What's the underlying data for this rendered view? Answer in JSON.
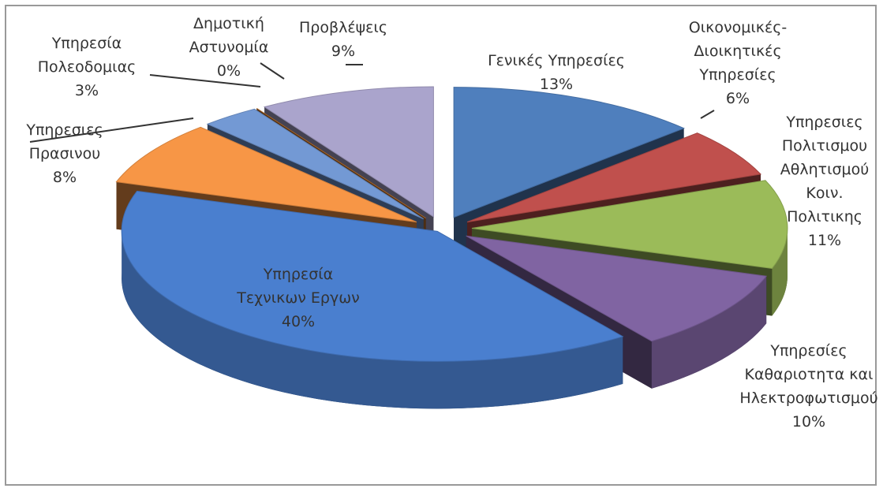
{
  "chart_data": {
    "type": "pie3d",
    "categories": [
      "Γενικές Υπηρεσίες",
      "Οικονομικές-\nΔιοικητικές\nΥπηρεσίες",
      "Υπηρεσιες\nΠολιτισμου\nΑθλητισμού\nΚοιν.\nΠολιτικης",
      "Υπηρεσίες\nΚαθαριοτητα και\nΗλεκτροφωτισμού",
      "Υπηρεσία\nΤεχνικων Εργων",
      "Υπηρεσιες\nΠρασινου",
      "Υπηρεσία\nΠολεοδομιας",
      "Δημοτική\nΑστυνομία",
      "Προβλέψεις"
    ],
    "values": [
      13,
      6,
      11,
      10,
      40,
      8,
      3,
      0,
      9
    ],
    "value_labels": [
      "13%",
      "6%",
      "11%",
      "10%",
      "40%",
      "8%",
      "3%",
      "0%",
      "9%"
    ],
    "colors": [
      "#4f7fbd",
      "#c0504d",
      "#9bbb59",
      "#8064a2",
      "#4a7fcf",
      "#f79646",
      "#7399d4",
      "#c0742f",
      "#aaa4cc"
    ]
  }
}
